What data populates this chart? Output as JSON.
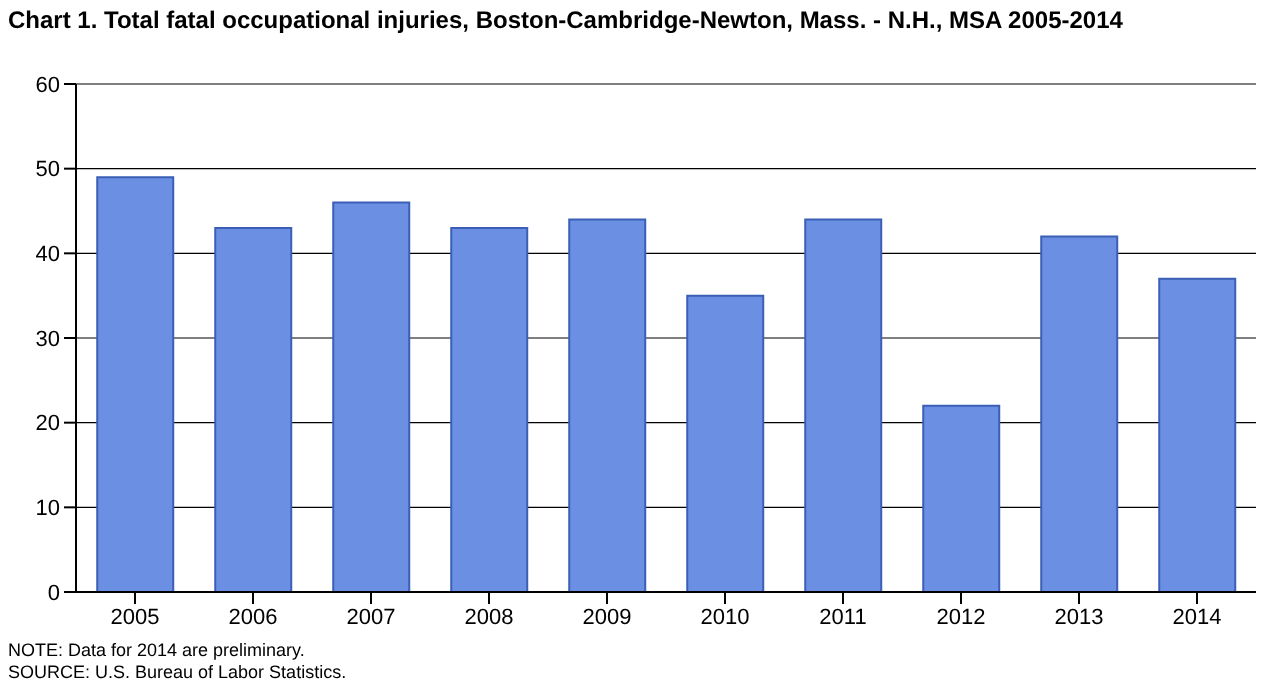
{
  "chart_data": {
    "type": "bar",
    "title": "Chart 1. Total fatal occupational injuries, Boston-Cambridge-Newton,  Mass. - N.H., MSA 2005-2014",
    "categories": [
      "2005",
      "2006",
      "2007",
      "2008",
      "2009",
      "2010",
      "2011",
      "2012",
      "2013",
      "2014"
    ],
    "values": [
      49,
      43,
      46,
      43,
      44,
      35,
      44,
      22,
      42,
      37
    ],
    "color": "#6b8fe3",
    "ylim": [
      0,
      60
    ],
    "yticks": [
      0,
      10,
      20,
      30,
      40,
      50,
      60
    ],
    "grid": "y",
    "annotations": [
      "NOTE: Data for 2014 are preliminary.",
      "SOURCE: U.S. Bureau of Labor Statistics."
    ]
  }
}
